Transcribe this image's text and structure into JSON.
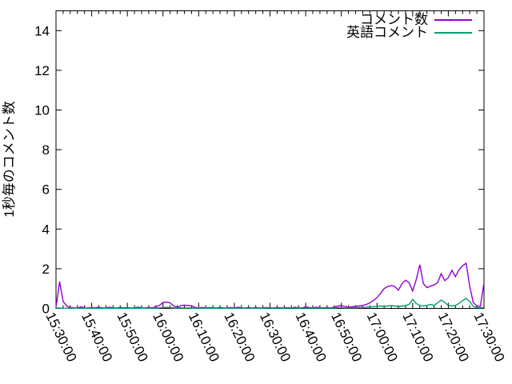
{
  "chart_data": {
    "type": "line",
    "title": "",
    "ylabel": "1秒毎のコメント数",
    "xlabel": "",
    "ylim": [
      0,
      15
    ],
    "yticks": [
      0,
      2,
      4,
      6,
      8,
      10,
      12,
      14
    ],
    "xtick_labels": [
      "15:30:00",
      "15:40:00",
      "15:50:00",
      "16:00:00",
      "16:10:00",
      "16:20:00",
      "16:30:00",
      "16:40:00",
      "16:50:00",
      "17:00:00",
      "17:10:00",
      "17:20:00",
      "17:30:00"
    ],
    "x_start": "15:30:00",
    "x_end": "17:30:00",
    "x_total_minutes": 120,
    "x_major_step_minutes": 10,
    "x_minor_step_minutes": 2,
    "x_step_minutes": 1,
    "grid": false,
    "legend_position": "top-right-inside",
    "frame_color": "#000000",
    "series": [
      {
        "name": "コメント数",
        "color": "#9400d3",
        "values": [
          0.05,
          1.35,
          0.35,
          0.12,
          0.05,
          0.03,
          0.02,
          0.08,
          0.03,
          0.02,
          0.05,
          0.03,
          0.06,
          0.02,
          0.02,
          0.06,
          0.03,
          0.02,
          0.05,
          0.03,
          0.04,
          0.02,
          0.03,
          0.06,
          0.03,
          0.02,
          0.04,
          0.03,
          0.08,
          0.15,
          0.3,
          0.32,
          0.28,
          0.12,
          0.05,
          0.14,
          0.16,
          0.15,
          0.13,
          0.05,
          0.03,
          0.05,
          0.02,
          0.04,
          0.03,
          0.02,
          0.05,
          0.03,
          0.02,
          0.04,
          0.02,
          0.06,
          0.03,
          0.02,
          0.05,
          0.02,
          0.04,
          0.03,
          0.02,
          0.05,
          0.03,
          0.02,
          0.05,
          0.03,
          0.02,
          0.04,
          0.02,
          0.06,
          0.03,
          0.02,
          0.08,
          0.05,
          0.03,
          0.06,
          0.04,
          0.03,
          0.05,
          0.03,
          0.06,
          0.12,
          0.15,
          0.1,
          0.06,
          0.08,
          0.1,
          0.12,
          0.15,
          0.2,
          0.28,
          0.4,
          0.55,
          0.75,
          1.0,
          1.1,
          1.15,
          1.1,
          0.92,
          1.25,
          1.42,
          1.3,
          0.88,
          1.45,
          2.2,
          1.25,
          1.05,
          1.12,
          1.18,
          1.3,
          1.75,
          1.4,
          1.55,
          1.92,
          1.6,
          1.95,
          2.15,
          2.28,
          1.1,
          0.3,
          0.12,
          0.1,
          1.3
        ]
      },
      {
        "name": "英語コメント",
        "color": "#009e73",
        "values": [
          0.02,
          0.02,
          0.01,
          0.01,
          0.02,
          0.01,
          0.01,
          0.02,
          0.01,
          0.01,
          0.02,
          0.01,
          0.01,
          0.02,
          0.01,
          0.01,
          0.02,
          0.01,
          0.01,
          0.02,
          0.01,
          0.01,
          0.02,
          0.01,
          0.01,
          0.02,
          0.01,
          0.01,
          0.02,
          0.03,
          0.05,
          0.06,
          0.04,
          0.02,
          0.02,
          0.03,
          0.02,
          0.02,
          0.02,
          0.01,
          0.02,
          0.01,
          0.02,
          0.01,
          0.02,
          0.01,
          0.02,
          0.01,
          0.02,
          0.01,
          0.02,
          0.01,
          0.02,
          0.01,
          0.02,
          0.01,
          0.02,
          0.01,
          0.02,
          0.02,
          0.03,
          0.02,
          0.02,
          0.03,
          0.02,
          0.02,
          0.03,
          0.02,
          0.02,
          0.03,
          0.03,
          0.02,
          0.03,
          0.02,
          0.03,
          0.02,
          0.03,
          0.02,
          0.03,
          0.04,
          0.04,
          0.03,
          0.03,
          0.04,
          0.03,
          0.04,
          0.05,
          0.06,
          0.08,
          0.08,
          0.1,
          0.12,
          0.1,
          0.12,
          0.14,
          0.12,
          0.1,
          0.12,
          0.15,
          0.2,
          0.45,
          0.25,
          0.15,
          0.12,
          0.15,
          0.2,
          0.15,
          0.28,
          0.42,
          0.3,
          0.15,
          0.12,
          0.15,
          0.25,
          0.4,
          0.5,
          0.35,
          0.1,
          0.04,
          0.03,
          0.05
        ]
      }
    ]
  }
}
